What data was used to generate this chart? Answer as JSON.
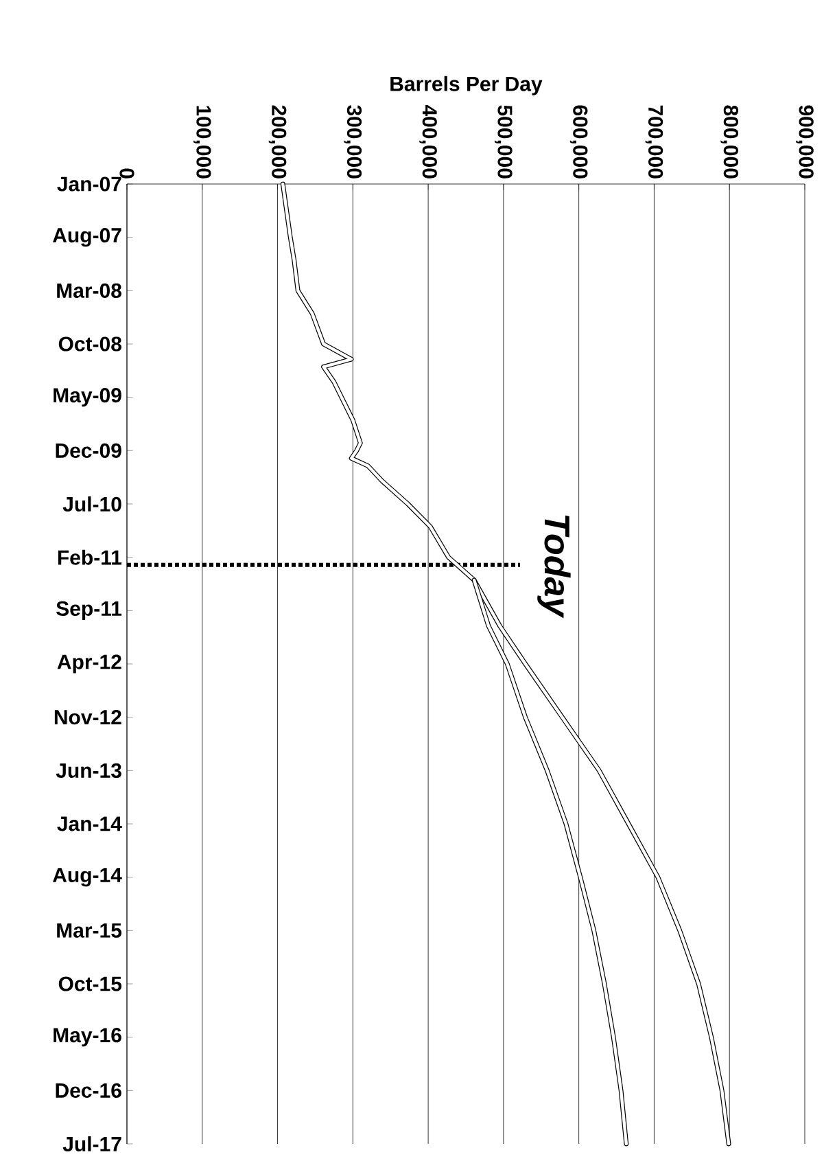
{
  "chart_data": {
    "type": "line",
    "orientation": "horizontal",
    "xlabel": "Barrels Per Day",
    "xlim": [
      0,
      900000
    ],
    "xticks": [
      {
        "value": 0,
        "label": "0"
      },
      {
        "value": 100000,
        "label": "100,000"
      },
      {
        "value": 200000,
        "label": "200,000"
      },
      {
        "value": 300000,
        "label": "300,000"
      },
      {
        "value": 400000,
        "label": "400,000"
      },
      {
        "value": 500000,
        "label": "500,000"
      },
      {
        "value": 600000,
        "label": "600,000"
      },
      {
        "value": 700000,
        "label": "700,000"
      },
      {
        "value": 800000,
        "label": "800,000"
      },
      {
        "value": 900000,
        "label": "900,000"
      }
    ],
    "ylim": [
      "2017-07",
      "2007-01"
    ],
    "yticks": [
      {
        "value": "2007-01",
        "label": "Jan-07"
      },
      {
        "value": "2007-08",
        "label": "Aug-07"
      },
      {
        "value": "2008-03",
        "label": "Mar-08"
      },
      {
        "value": "2008-10",
        "label": "Oct-08"
      },
      {
        "value": "2009-05",
        "label": "May-09"
      },
      {
        "value": "2009-12",
        "label": "Dec-09"
      },
      {
        "value": "2010-07",
        "label": "Jul-10"
      },
      {
        "value": "2011-02",
        "label": "Feb-11"
      },
      {
        "value": "2011-09",
        "label": "Sep-11"
      },
      {
        "value": "2012-04",
        "label": "Apr-12"
      },
      {
        "value": "2012-11",
        "label": "Nov-12"
      },
      {
        "value": "2013-06",
        "label": "Jun-13"
      },
      {
        "value": "2014-01",
        "label": "Jan-14"
      },
      {
        "value": "2014-08",
        "label": "Aug-14"
      },
      {
        "value": "2015-03",
        "label": "Mar-15"
      },
      {
        "value": "2015-10",
        "label": "Oct-15"
      },
      {
        "value": "2016-05",
        "label": "May-16"
      },
      {
        "value": "2016-12",
        "label": "Dec-16"
      },
      {
        "value": "2017-07",
        "label": "Jul-17"
      }
    ],
    "grid": "x",
    "series": [
      {
        "color": "#000000",
        "x": [
          "2007-01",
          "2007-08",
          "2007-11",
          "2008-03",
          "2008-06",
          "2008-10",
          "2008-12",
          "2009-01",
          "2009-03",
          "2009-05",
          "2009-08",
          "2009-11",
          "2009-12",
          "2010-01",
          "2010-02",
          "2010-04",
          "2010-07",
          "2010-10",
          "2011-02",
          "2011-05",
          "2011-11",
          "2012-04",
          "2012-11",
          "2013-06",
          "2014-01",
          "2014-08",
          "2015-03",
          "2015-10",
          "2016-05",
          "2016-12",
          "2017-07"
        ],
        "values": [
          207000,
          217000,
          222000,
          227000,
          246000,
          261000,
          298000,
          261000,
          275000,
          285000,
          300000,
          310000,
          305000,
          298000,
          320000,
          339000,
          373000,
          403000,
          427000,
          461000,
          495000,
          529000,
          578000,
          627000,
          666000,
          705000,
          734000,
          759000,
          776000,
          790000,
          799000
        ]
      },
      {
        "color": "#000000",
        "x": [
          "2011-05",
          "2011-11",
          "2012-04",
          "2012-11",
          "2013-06",
          "2014-01",
          "2014-08",
          "2015-03",
          "2015-10",
          "2016-05",
          "2016-12",
          "2017-07"
        ],
        "values": [
          461000,
          480000,
          505000,
          529000,
          558000,
          583000,
          602000,
          620000,
          634000,
          646000,
          656000,
          663000
        ]
      }
    ],
    "ref_lines": [
      {
        "axis": "y",
        "value": "2011-03",
        "label": "Today",
        "line_style": "dotted",
        "color": "#000000"
      }
    ]
  }
}
